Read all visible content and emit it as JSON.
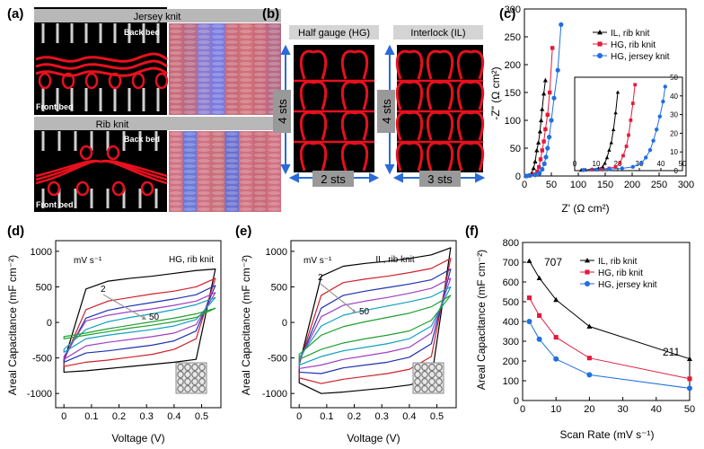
{
  "panel_labels": [
    "(a)",
    "(b)",
    "(c)",
    "(d)",
    "(e)",
    "(f)"
  ],
  "panel_a": {
    "jersey_title": "Jersey knit",
    "rib_title": "Rib knit",
    "back_bed": "Back bed",
    "front_bed": "Front bed"
  },
  "panel_b": {
    "hg_title": "Half gauge (HG)",
    "il_title": "Interlock (IL)",
    "hg_height": "4 sts",
    "hg_width": "2 sts",
    "il_height": "4 sts",
    "il_width": "3 sts"
  },
  "colors": {
    "yarn_red": "#e8101e",
    "il_series": "#000000",
    "hg_rib_series": "#e31a3a",
    "hg_jersey_series": "#1f6fe0"
  },
  "chart_data": [
    {
      "type": "scatter",
      "panel": "(c)",
      "xlabel": "Z' (Ω cm²)",
      "ylabel": "-Z\" (Ω cm²)",
      "xlim": [
        0,
        300
      ],
      "ylim": [
        0,
        300
      ],
      "xticks": [
        "0",
        "50",
        "100",
        "150",
        "200",
        "250",
        "300"
      ],
      "yticks": [
        "0",
        "50",
        "100",
        "150",
        "200",
        "250",
        "300"
      ],
      "legend": "top-right",
      "series": [
        {
          "name": "IL, rib knit",
          "marker": "triangle",
          "x": [
            3,
            8,
            13,
            17,
            20,
            23,
            26,
            29,
            31,
            33,
            36,
            39
          ],
          "y": [
            0,
            1,
            4,
            14,
            26,
            46,
            60,
            80,
            100,
            120,
            148,
            172
          ]
        },
        {
          "name": "HG, rib knit",
          "marker": "square",
          "x": [
            3,
            10,
            18,
            24,
            27,
            30,
            33,
            36,
            39,
            43,
            47,
            52
          ],
          "y": [
            0,
            1,
            3,
            8,
            16,
            30,
            46,
            62,
            84,
            110,
            150,
            230
          ]
        },
        {
          "name": "HG, jersey knit",
          "marker": "circle",
          "x": [
            3,
            10,
            20,
            28,
            33,
            37,
            40,
            43,
            46,
            50,
            55,
            62,
            68
          ],
          "y": [
            0,
            1,
            2,
            5,
            12,
            22,
            34,
            50,
            70,
            100,
            140,
            190,
            272
          ]
        }
      ],
      "inset": {
        "xlim": [
          0,
          50
        ],
        "ylim": [
          0,
          50
        ],
        "xticks": [
          "0",
          "10",
          "20",
          "30",
          "40",
          "50"
        ],
        "yticks": [
          "0",
          "10",
          "20",
          "30",
          "40",
          "50"
        ],
        "series": [
          {
            "name": "IL, rib knit",
            "x": [
              3,
              5,
              8,
              11,
              13,
              14,
              15,
              16,
              17,
              18,
              19,
              20
            ],
            "y": [
              0.3,
              0.5,
              0.8,
              1.2,
              2,
              4,
              7,
              11,
              15,
              22,
              31,
              42
            ]
          },
          {
            "name": "HG, rib knit",
            "x": [
              4,
              8,
              12,
              16,
              19,
              21,
              22.5,
              24,
              25,
              26,
              27,
              28
            ],
            "y": [
              0.3,
              0.5,
              0.8,
              1.2,
              2,
              4,
              8,
              13,
              19,
              27,
              36,
              46
            ]
          },
          {
            "name": "HG, jersey knit",
            "x": [
              4,
              10,
              16,
              22,
              27,
              31,
              33,
              35,
              36.5,
              38,
              39.5,
              41,
              42
            ],
            "y": [
              0.3,
              0.5,
              0.8,
              1.2,
              2,
              4,
              7,
              11,
              16,
              22,
              29,
              37,
              45
            ]
          }
        ]
      }
    },
    {
      "type": "line",
      "panel": "(d)",
      "annotation": "HG, rib knit",
      "units_label": "mV s⁻¹",
      "rate_labels": [
        "2",
        "50"
      ],
      "xlabel": "Voltage (V)",
      "ylabel": "Areal Capacitance (mF cm⁻²)",
      "xlim": [
        -0.03,
        0.57
      ],
      "ylim": [
        -1200,
        1150
      ],
      "xticks": [
        "0",
        "0.1",
        "0.2",
        "0.3",
        "0.4",
        "0.5"
      ],
      "yticks": [
        "-1000",
        "-500",
        "0",
        "500",
        "1000"
      ],
      "curves": [
        {
          "color": "#000000",
          "upper": [
            -550,
            470,
            580,
            620,
            650,
            690,
            730,
            750
          ],
          "lower": [
            -700,
            -680,
            -650,
            -620,
            -590,
            -560,
            -520,
            680
          ]
        },
        {
          "color": "#d0202a",
          "upper": [
            -530,
            180,
            300,
            350,
            400,
            440,
            500,
            620
          ],
          "lower": [
            -620,
            -560,
            -530,
            -490,
            -450,
            -380,
            -230,
            620
          ]
        },
        {
          "color": "#2030b0",
          "upper": [
            -510,
            60,
            170,
            230,
            280,
            330,
            390,
            520
          ],
          "lower": [
            -560,
            -430,
            -400,
            -360,
            -320,
            -260,
            -120,
            520
          ]
        },
        {
          "color": "#a040c0",
          "upper": [
            -480,
            20,
            100,
            150,
            190,
            240,
            300,
            420
          ],
          "lower": [
            -520,
            -330,
            -280,
            -240,
            -200,
            -150,
            -30,
            420
          ]
        },
        {
          "color": "#10a0c0",
          "upper": [
            -380,
            -100,
            10,
            70,
            120,
            180,
            250,
            350
          ],
          "lower": [
            -420,
            -230,
            -180,
            -140,
            -100,
            -50,
            40,
            350
          ]
        },
        {
          "color": "#20a030",
          "upper": [
            -200,
            -150,
            -90,
            -40,
            10,
            60,
            120,
            200
          ],
          "lower": [
            -230,
            -180,
            -130,
            -80,
            -40,
            10,
            70,
            200
          ]
        }
      ]
    },
    {
      "type": "line",
      "panel": "(e)",
      "annotation": "IL, rib knit",
      "units_label": "mV s⁻¹",
      "rate_labels": [
        "2",
        "50"
      ],
      "xlabel": "Voltage (V)",
      "ylabel": "Areal Capacitance (mF cm⁻²)",
      "xlim": [
        -0.03,
        0.57
      ],
      "ylim": [
        -1200,
        1150
      ],
      "xticks": [
        "0",
        "0.1",
        "0.2",
        "0.3",
        "0.4",
        "0.5"
      ],
      "yticks": [
        "-1000",
        "-500",
        "0",
        "500",
        "1000"
      ],
      "curves": [
        {
          "color": "#000000",
          "upper": [
            -600,
            650,
            790,
            830,
            860,
            900,
            950,
            1050
          ],
          "lower": [
            -850,
            -1000,
            -980,
            -950,
            -920,
            -880,
            -800,
            1050
          ]
        },
        {
          "color": "#d0202a",
          "upper": [
            -580,
            380,
            560,
            610,
            650,
            700,
            760,
            900
          ],
          "lower": [
            -780,
            -860,
            -800,
            -760,
            -720,
            -660,
            -480,
            900
          ]
        },
        {
          "color": "#2030b0",
          "upper": [
            -560,
            200,
            380,
            440,
            490,
            540,
            600,
            750
          ],
          "lower": [
            -700,
            -720,
            -640,
            -600,
            -560,
            -490,
            -300,
            750
          ]
        },
        {
          "color": "#a040c0",
          "upper": [
            -540,
            80,
            240,
            300,
            350,
            410,
            480,
            620
          ],
          "lower": [
            -650,
            -600,
            -520,
            -470,
            -420,
            -350,
            -150,
            620
          ]
        },
        {
          "color": "#10a0c0",
          "upper": [
            -500,
            -50,
            100,
            170,
            230,
            290,
            360,
            500
          ],
          "lower": [
            -600,
            -480,
            -400,
            -350,
            -300,
            -230,
            -50,
            500
          ]
        },
        {
          "color": "#20a030",
          "upper": [
            -450,
            -180,
            -60,
            10,
            70,
            130,
            220,
            380
          ],
          "lower": [
            -520,
            -380,
            -290,
            -230,
            -180,
            -120,
            30,
            380
          ]
        }
      ]
    },
    {
      "type": "line",
      "panel": "(f)",
      "xlabel": "Scan Rate (mV s⁻¹)",
      "ylabel": "Areal Capacitance (mF cm⁻²)",
      "xlim": [
        0,
        50
      ],
      "ylim": [
        0,
        800
      ],
      "xticks": [
        "0",
        "10",
        "20",
        "30",
        "40",
        "50"
      ],
      "yticks": [
        "0",
        "100",
        "200",
        "300",
        "400",
        "500",
        "600",
        "700",
        "800"
      ],
      "legend": "top-right",
      "annotations": [
        "707",
        "211"
      ],
      "categories": [
        2,
        5,
        10,
        20,
        50
      ],
      "series": [
        {
          "name": "IL, rib knit",
          "marker": "triangle",
          "values": [
            707,
            620,
            510,
            375,
            211
          ]
        },
        {
          "name": "HG, rib knit",
          "marker": "square",
          "values": [
            520,
            430,
            320,
            215,
            110
          ]
        },
        {
          "name": "HG, jersey knit",
          "marker": "circle",
          "values": [
            400,
            310,
            210,
            130,
            62
          ]
        }
      ]
    }
  ]
}
